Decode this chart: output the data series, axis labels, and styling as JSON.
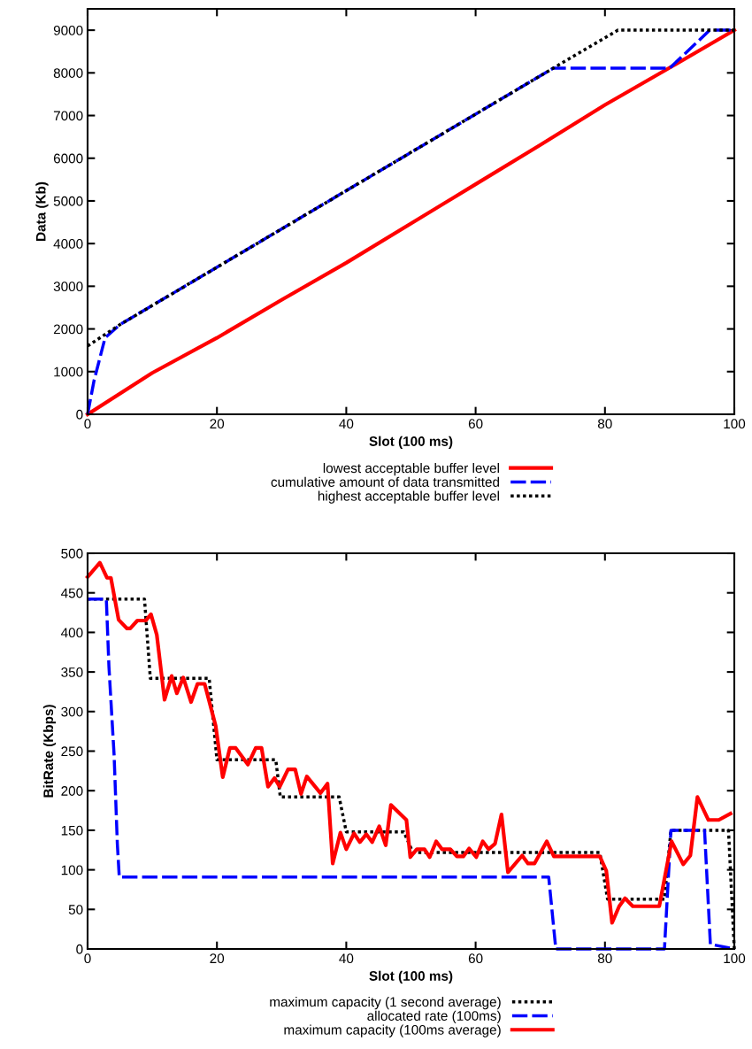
{
  "chart_data": [
    {
      "type": "line",
      "xlabel": "Slot (100 ms)",
      "ylabel": "Data (Kb)",
      "xlim": [
        0,
        100
      ],
      "ylim": [
        0,
        9500
      ],
      "xticks": [
        0,
        20,
        40,
        60,
        80,
        100
      ],
      "yticks": [
        0,
        1000,
        2000,
        3000,
        4000,
        5000,
        6000,
        7000,
        8000,
        9000
      ],
      "legend": "bottom",
      "grid": false,
      "series": [
        {
          "name": "lowest acceptable buffer level",
          "color": "#ff0000",
          "line_style": "solid",
          "x": [
            0,
            10,
            20,
            30,
            40,
            50,
            60,
            70,
            80,
            90,
            100
          ],
          "values": [
            0,
            970,
            1790,
            2680,
            3550,
            4470,
            5390,
            6310,
            7250,
            8120,
            9000
          ]
        },
        {
          "name": "cumulative amount of data transmitted",
          "color": "#0000ff",
          "line_style": "dashed",
          "x": [
            0,
            1,
            2.7,
            5,
            72,
            90,
            96.2,
            100
          ],
          "values": [
            0,
            790,
            1790,
            2100,
            8110,
            8110,
            9000,
            9000
          ]
        },
        {
          "name": "highest acceptable buffer level",
          "color": "#000000",
          "line_style": "dotted",
          "x": [
            0,
            5,
            72,
            82,
            100
          ],
          "values": [
            1600,
            2100,
            8110,
            9000,
            9000
          ]
        }
      ]
    },
    {
      "type": "line",
      "xlabel": "Slot (100 ms)",
      "ylabel": "BitRate (Kbps)",
      "xlim": [
        0,
        100
      ],
      "ylim": [
        0,
        500
      ],
      "xticks": [
        0,
        20,
        40,
        60,
        80,
        100
      ],
      "yticks": [
        0,
        50,
        100,
        150,
        200,
        250,
        300,
        350,
        400,
        450,
        500
      ],
      "legend": "bottom",
      "grid": false,
      "series": [
        {
          "name": "maximum capacity (1 second average)",
          "color": "#000000",
          "line_style": "dotted",
          "x": [
            0,
            8.8,
            9.7,
            18.8,
            20,
            29.1,
            29.8,
            38.9,
            40,
            48.9,
            50.3,
            79.2,
            80.4,
            89.2,
            90.2,
            99.1,
            100
          ],
          "values": [
            442,
            442,
            342,
            342,
            239,
            239,
            192,
            192,
            148,
            148,
            122,
            122,
            63,
            63,
            150,
            150,
            0
          ]
        },
        {
          "name": "allocated rate (100ms)",
          "color": "#0000ff",
          "line_style": "dashed",
          "x": [
            0,
            2.9,
            3.3,
            4.1,
            4.6,
            4.9,
            71.3,
            72.4,
            89.2,
            90.2,
            95.4,
            96.3,
            100
          ],
          "values": [
            442,
            442,
            357,
            245,
            133,
            91,
            91,
            0,
            0,
            150,
            150,
            6,
            0
          ]
        },
        {
          "name": "maximum capacity (100ms average)",
          "color": "#ff0000",
          "line_style": "solid",
          "x": [
            0,
            1.9,
            3,
            3.6,
            4.8,
            6.1,
            6.6,
            7.7,
            9,
            9.8,
            10.7,
            11.9,
            13,
            13.8,
            14.8,
            16,
            17,
            18.1,
            19.8,
            20.9,
            22,
            22.9,
            24.8,
            26,
            26.9,
            27.9,
            28.9,
            29.7,
            31,
            32.1,
            33,
            33.9,
            36,
            37.1,
            37.9,
            39.1,
            40,
            41.2,
            42.1,
            43.1,
            44,
            45.1,
            46.1,
            46.9,
            49.3,
            49.9,
            50.9,
            52.1,
            52.9,
            53.9,
            54.8,
            56.1,
            57.1,
            58.1,
            59,
            60.1,
            61.1,
            62,
            63,
            64,
            65,
            67.2,
            68.1,
            69.1,
            71,
            72.1,
            79.2,
            80.2,
            81.1,
            82.2,
            83.1,
            84.3,
            88.4,
            90.3,
            92.1,
            93.2,
            94.3,
            96,
            97.6,
            99.4
          ],
          "values": [
            470,
            488,
            469,
            469,
            416,
            405,
            405,
            415,
            415,
            423,
            397,
            315,
            345,
            323,
            343,
            312,
            335,
            335,
            282,
            217,
            254,
            254,
            233,
            254,
            254,
            205,
            216,
            205,
            227,
            227,
            196,
            218,
            197,
            209,
            108,
            147,
            126,
            146,
            135,
            145,
            135,
            155,
            131,
            182,
            163,
            116,
            126,
            126,
            116,
            136,
            126,
            126,
            117,
            117,
            127,
            116,
            136,
            126,
            133,
            170,
            97,
            118,
            108,
            108,
            136,
            117,
            117,
            99,
            33,
            54,
            64,
            54,
            54,
            136,
            107,
            118,
            192,
            163,
            163,
            171
          ]
        }
      ]
    }
  ]
}
